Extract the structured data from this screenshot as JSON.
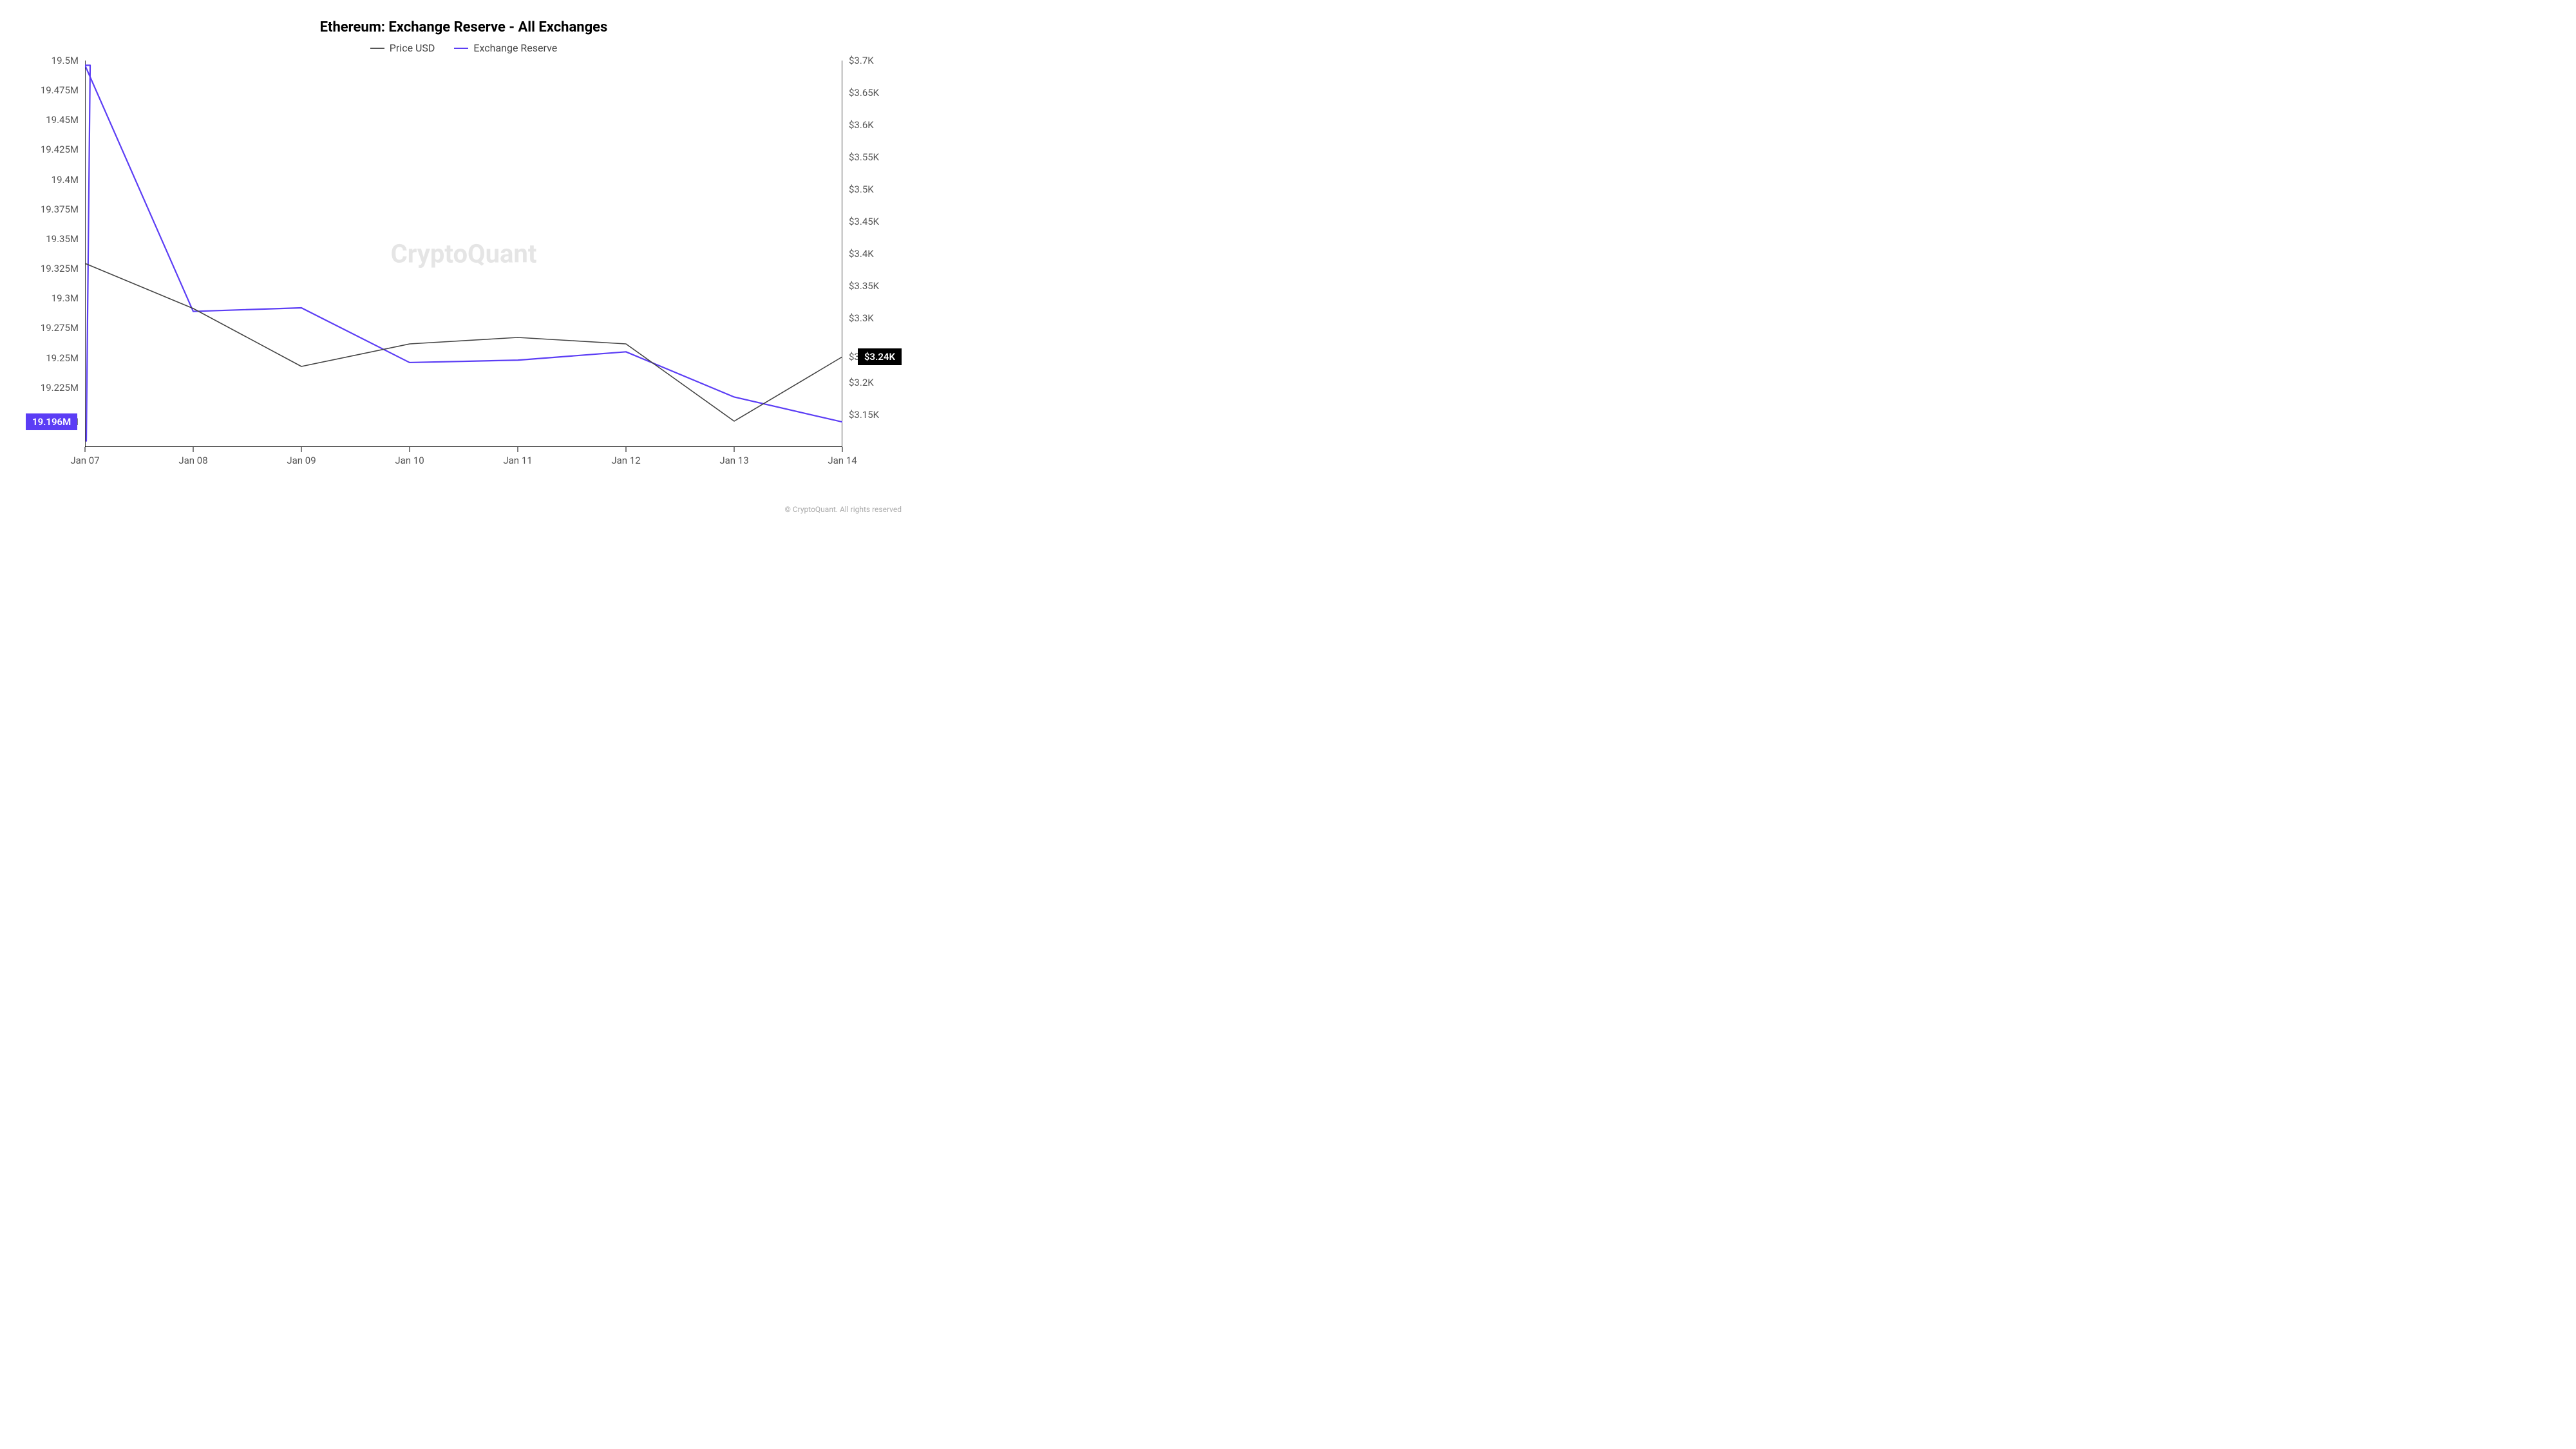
{
  "chart": {
    "type": "line",
    "title": "Ethereum: Exchange Reserve - All Exchanges",
    "title_fontsize": 22,
    "title_fontweight": 700,
    "background_color": "#ffffff",
    "watermark": {
      "text": "CryptoQuant",
      "color": "#e5e5e5",
      "fontsize": 40,
      "fontweight": 700
    },
    "legend": {
      "position": "top-center",
      "fontsize": 16,
      "items": [
        {
          "label": "Price USD",
          "color": "#555555",
          "line_width": 2
        },
        {
          "label": "Exchange Reserve",
          "color": "#5b3df5",
          "line_width": 2
        }
      ]
    },
    "x_axis": {
      "ticks": [
        "Jan 07",
        "Jan 08",
        "Jan 09",
        "Jan 10",
        "Jan 11",
        "Jan 12",
        "Jan 13",
        "Jan 14"
      ],
      "fontsize": 15,
      "color": "#555555",
      "line_color": "#000000"
    },
    "y_left": {
      "title": null,
      "domain_min": 19175000,
      "domain_max": 19500000,
      "ticks": [
        {
          "value": 19500000,
          "label": "19.5M"
        },
        {
          "value": 19475000,
          "label": "19.475M"
        },
        {
          "value": 19450000,
          "label": "19.45M"
        },
        {
          "value": 19425000,
          "label": "19.425M"
        },
        {
          "value": 19400000,
          "label": "19.4M"
        },
        {
          "value": 19375000,
          "label": "19.375M"
        },
        {
          "value": 19350000,
          "label": "19.35M"
        },
        {
          "value": 19325000,
          "label": "19.325M"
        },
        {
          "value": 19300000,
          "label": "19.3M"
        },
        {
          "value": 19275000,
          "label": "19.275M"
        },
        {
          "value": 19250000,
          "label": "19.25M"
        },
        {
          "value": 19225000,
          "label": "19.225M"
        },
        {
          "value": 19196000,
          "label": "19.196M"
        }
      ],
      "fontsize": 15,
      "color": "#555555",
      "last_value_badge": {
        "value": 19196000,
        "label": "19.196M",
        "background": "#5b3df5",
        "text_color": "#ffffff"
      }
    },
    "y_right": {
      "title": null,
      "domain_min": 3100,
      "domain_max": 3700,
      "ticks": [
        {
          "value": 3700,
          "label": "$3.7K"
        },
        {
          "value": 3650,
          "label": "$3.65K"
        },
        {
          "value": 3600,
          "label": "$3.6K"
        },
        {
          "value": 3550,
          "label": "$3.55K"
        },
        {
          "value": 3500,
          "label": "$3.5K"
        },
        {
          "value": 3450,
          "label": "$3.45K"
        },
        {
          "value": 3400,
          "label": "$3.4K"
        },
        {
          "value": 3350,
          "label": "$3.35K"
        },
        {
          "value": 3300,
          "label": "$3.3K"
        },
        {
          "value": 3240,
          "label": "$3.24K"
        },
        {
          "value": 3200,
          "label": "$3.2K"
        },
        {
          "value": 3150,
          "label": "$3.15K"
        }
      ],
      "fontsize": 15,
      "color": "#555555",
      "last_value_badge": {
        "value": 3240,
        "label": "$3.24K",
        "background": "#000000",
        "text_color": "#ffffff"
      }
    },
    "axis_line_color": "#000000",
    "series": [
      {
        "name": "Exchange Reserve",
        "axis": "left",
        "color": "#5b3df5",
        "line_width": 2.2,
        "initial_spike": {
          "x": "Jan 07",
          "from": 19180000,
          "to": 19496000
        },
        "points": [
          {
            "x": "Jan 07",
            "y": 19496000
          },
          {
            "x": "Jan 08",
            "y": 19289000
          },
          {
            "x": "Jan 09",
            "y": 19292000
          },
          {
            "x": "Jan 10",
            "y": 19246000
          },
          {
            "x": "Jan 11",
            "y": 19248000
          },
          {
            "x": "Jan 12",
            "y": 19255000
          },
          {
            "x": "Jan 13",
            "y": 19217000
          },
          {
            "x": "Jan 14",
            "y": 19196000
          }
        ]
      },
      {
        "name": "Price USD",
        "axis": "right",
        "color": "#444444",
        "line_width": 1.6,
        "points": [
          {
            "x": "Jan 07",
            "y": 3385
          },
          {
            "x": "Jan 08",
            "y": 3315
          },
          {
            "x": "Jan 09",
            "y": 3225
          },
          {
            "x": "Jan 10",
            "y": 3260
          },
          {
            "x": "Jan 11",
            "y": 3270
          },
          {
            "x": "Jan 12",
            "y": 3260
          },
          {
            "x": "Jan 13",
            "y": 3140
          },
          {
            "x": "Jan 14",
            "y": 3240
          }
        ]
      }
    ],
    "footer": "© CryptoQuant. All rights reserved",
    "footer_fontsize": 12,
    "footer_color": "#aaaaaa"
  }
}
